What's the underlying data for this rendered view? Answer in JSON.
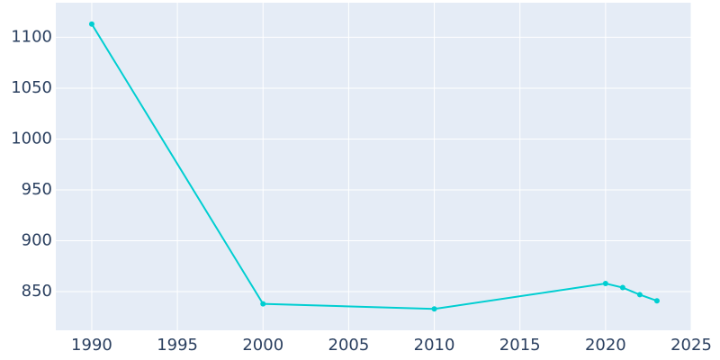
{
  "chart_data": {
    "type": "line",
    "x": [
      1990,
      2000,
      2010,
      2020,
      2021,
      2022,
      2023
    ],
    "series": [
      {
        "color": "#00ced1",
        "values": [
          1113,
          838,
          833,
          858,
          854,
          847,
          841
        ]
      }
    ],
    "xlim": [
      1987.9,
      2025
    ],
    "xticks": [
      1990,
      1995,
      2000,
      2005,
      2010,
      2015,
      2020,
      2025
    ],
    "ylim": [
      812,
      1134
    ],
    "yticks": [
      850,
      900,
      950,
      1000,
      1050,
      1100
    ],
    "grid": true
  }
}
